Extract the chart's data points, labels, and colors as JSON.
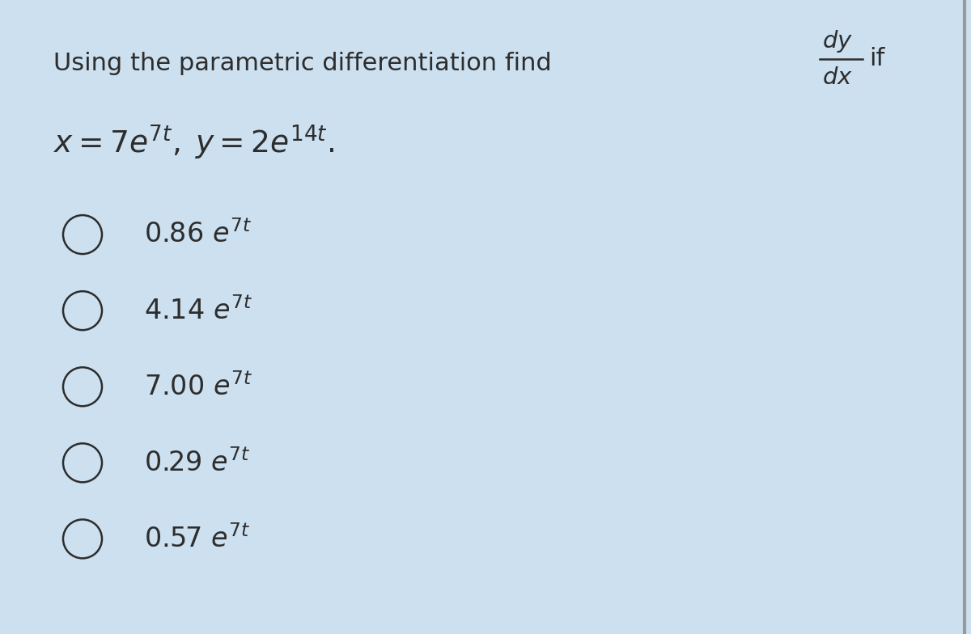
{
  "background_color": "#cce0f0",
  "text_color": "#2d2d2d",
  "options": [
    "0.86 e^{7t}",
    "4.14 e^{7t}",
    "7.00 e^{7t}",
    "0.29 e^{7t}",
    "0.57 e^{7t}"
  ],
  "figsize": [
    12.0,
    7.84
  ],
  "dpi": 100,
  "border_color": "#999999",
  "border_linewidth": 3
}
